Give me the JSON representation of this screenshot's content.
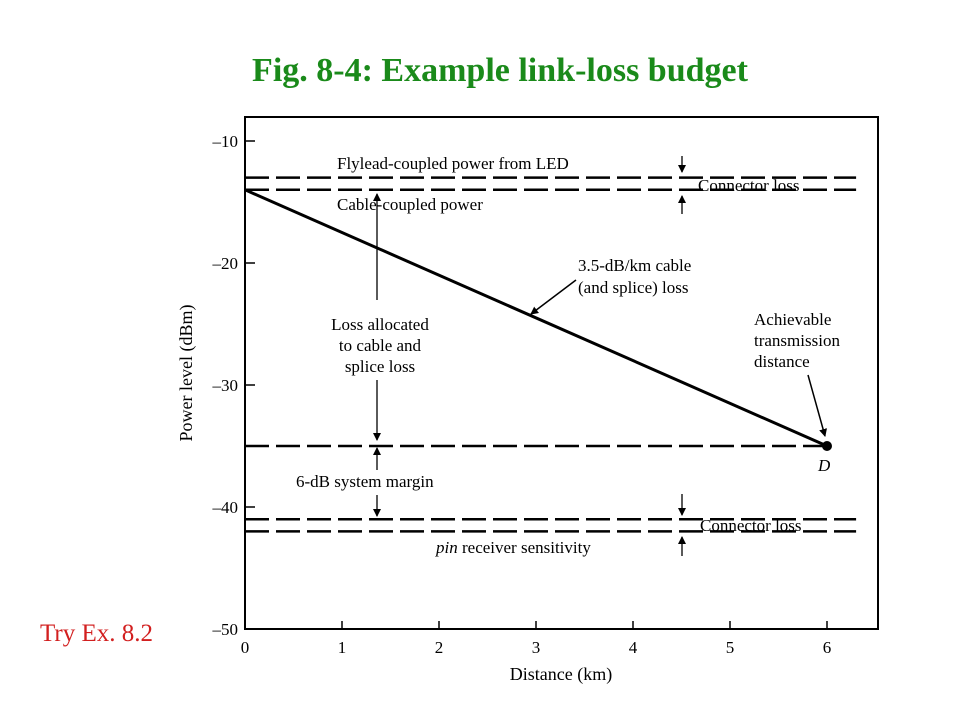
{
  "slide": {
    "title": "Fig. 8-4: Example link-loss budget",
    "note": "Try Ex. 8.2",
    "title_color": "#1a8a1a",
    "note_color": "#d21f1f"
  },
  "chart_data": {
    "type": "line",
    "xlabel": "Distance (km)",
    "ylabel": "Power level (dBm)",
    "xlim": [
      0,
      6.5
    ],
    "ylim": [
      -50,
      -8
    ],
    "x_ticks": [
      "0",
      "1",
      "2",
      "3",
      "4",
      "5",
      "6"
    ],
    "y_ticks": [
      "–10",
      "–20",
      "–30",
      "–40",
      "–50"
    ],
    "grid": false,
    "series": [
      {
        "kind": "dashed",
        "x": [
          0,
          6.3
        ],
        "y": [
          -13,
          -13
        ],
        "label": "Flylead-coupled power from LED"
      },
      {
        "kind": "dashed",
        "x": [
          0,
          6.3
        ],
        "y": [
          -14,
          -14
        ],
        "label": "Cable-coupled power"
      },
      {
        "kind": "solid",
        "x": [
          0,
          6
        ],
        "y": [
          -14,
          -35
        ],
        "label": "3.5-dB/km cable (and splice) loss"
      },
      {
        "kind": "dashed",
        "x": [
          0,
          6
        ],
        "y": [
          -35,
          -35
        ],
        "label": ""
      },
      {
        "kind": "dashed",
        "x": [
          0,
          6.3
        ],
        "y": [
          -41,
          -41
        ],
        "label": ""
      },
      {
        "kind": "dashed",
        "x": [
          0,
          6.3
        ],
        "y": [
          -42,
          -42
        ],
        "label": "pin receiver sensitivity"
      }
    ],
    "points": [
      {
        "x": 6,
        "y": -35,
        "label": "D"
      }
    ],
    "annotations": {
      "connector_loss_top": "Connector loss",
      "connector_loss_bottom": "Connector loss",
      "cable_loss_line1": "3.5-dB/km cable",
      "cable_loss_line2": "(and splice) loss",
      "loss_alloc_line1": "Loss allocated",
      "loss_alloc_line2": "to cable and",
      "loss_alloc_line3": "splice loss",
      "achievable_line1": "Achievable",
      "achievable_line2": "transmission",
      "achievable_line3": "distance",
      "system_margin": "6-dB system margin",
      "pin_word": "pin",
      "receiver_rest": " receiver sensitivity"
    }
  }
}
